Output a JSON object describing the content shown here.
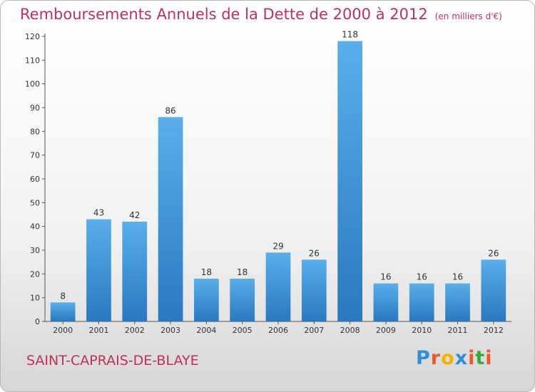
{
  "title": "Remboursements Annuels de la Dette de 2000 à 2012",
  "unit_note": "(en milliers d'€)",
  "commune": "SAINT-CAPRAIS-DE-BLAYE",
  "brand": {
    "letters": [
      "P",
      "r",
      "o",
      "x",
      "i",
      "t",
      "i"
    ],
    "colors": [
      "#2e8fd8",
      "#e85a2a",
      "#f0b400",
      "#2e8fd8",
      "#e85a2a",
      "#3aa83a",
      "#e85a2a"
    ]
  },
  "colors": {
    "title": "#c0305a",
    "bar_light": "#5aaeea",
    "bar_dark": "#2a78c0",
    "axis": "#555555"
  },
  "chart_data": {
    "type": "bar",
    "categories": [
      "2000",
      "2001",
      "2002",
      "2003",
      "2004",
      "2005",
      "2006",
      "2007",
      "2008",
      "2009",
      "2010",
      "2011",
      "2012"
    ],
    "values": [
      8,
      43,
      42,
      86,
      18,
      18,
      29,
      26,
      118,
      16,
      16,
      16,
      26
    ],
    "data_labels": [
      "8",
      "43",
      "42",
      "86",
      "18",
      "18",
      "29",
      "26",
      "118",
      "16",
      "16",
      "16",
      "26"
    ],
    "title": "Remboursements Annuels de la Dette de 2000 à 2012",
    "xlabel": "",
    "ylabel": "",
    "ylim": [
      0,
      120
    ],
    "yticks": [
      0,
      10,
      20,
      30,
      40,
      50,
      60,
      70,
      80,
      90,
      100,
      110,
      120
    ],
    "ytick_labels": [
      "0",
      "10",
      "20",
      "30",
      "40",
      "50",
      "60",
      "70",
      "80",
      "90",
      "100",
      "110",
      "120"
    ],
    "grid": false,
    "legend": "none"
  }
}
